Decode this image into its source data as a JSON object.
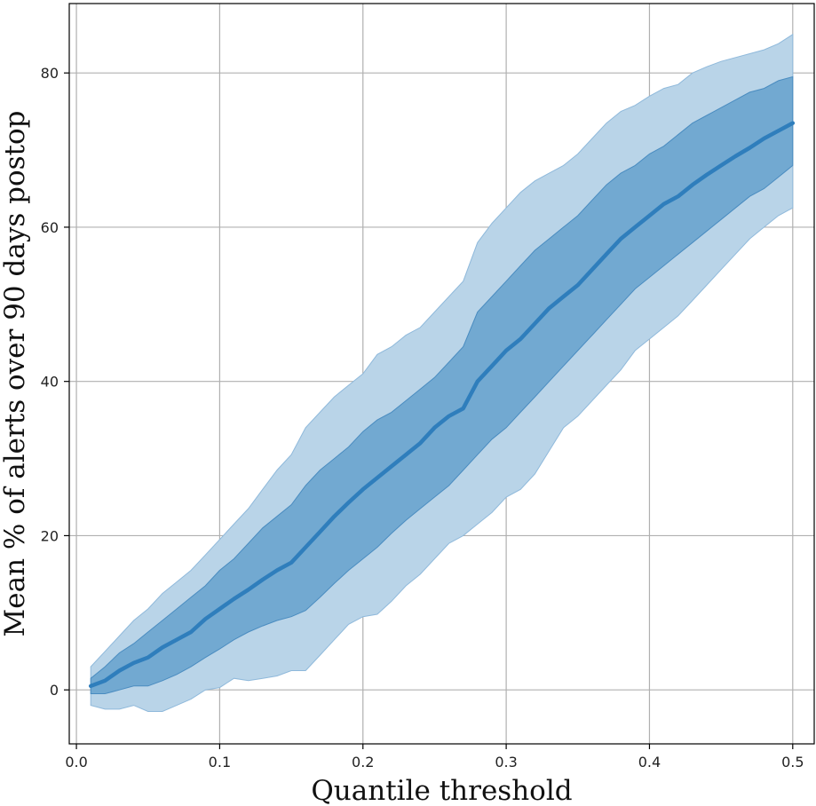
{
  "chart_data": {
    "type": "area",
    "title": "",
    "xlabel": "Quantile threshold",
    "ylabel": "Mean % of alerts over 90 days postop",
    "xlim": [
      -0.005,
      0.515
    ],
    "ylim": [
      -7,
      89
    ],
    "xticks": [
      0.0,
      0.1,
      0.2,
      0.3,
      0.4,
      0.5
    ],
    "xtick_labels": [
      "0.0",
      "0.1",
      "0.2",
      "0.3",
      "0.4",
      "0.5"
    ],
    "yticks": [
      0,
      20,
      40,
      60,
      80
    ],
    "ytick_labels": [
      "0",
      "20",
      "40",
      "60",
      "80"
    ],
    "grid": true,
    "legend": "none",
    "colors": {
      "line": "#2f7ebc",
      "inner_band": "#5b9bca",
      "outer_band": "#b9d4e8",
      "grid": "#b0b0b0"
    },
    "x": [
      0.01,
      0.02,
      0.03,
      0.04,
      0.05,
      0.06,
      0.07,
      0.08,
      0.09,
      0.1,
      0.11,
      0.12,
      0.13,
      0.14,
      0.15,
      0.16,
      0.17,
      0.18,
      0.19,
      0.2,
      0.21,
      0.22,
      0.23,
      0.24,
      0.25,
      0.26,
      0.27,
      0.28,
      0.29,
      0.3,
      0.31,
      0.32,
      0.33,
      0.34,
      0.35,
      0.36,
      0.37,
      0.38,
      0.39,
      0.4,
      0.41,
      0.42,
      0.43,
      0.44,
      0.45,
      0.46,
      0.47,
      0.48,
      0.49,
      0.5
    ],
    "series": [
      {
        "values": [
          0.5,
          1.2,
          2.5,
          3.5,
          4.2,
          5.5,
          6.5,
          7.5,
          9.2,
          10.5,
          11.8,
          13.0,
          14.3,
          15.5,
          16.5,
          18.5,
          20.5,
          22.5,
          24.3,
          26.0,
          27.5,
          29.0,
          30.5,
          32.0,
          34.0,
          35.5,
          36.5,
          40.0,
          42.0,
          44.0,
          45.5,
          47.5,
          49.5,
          51.0,
          52.5,
          54.5,
          56.5,
          58.5,
          60.0,
          61.5,
          63.0,
          64.0,
          65.5,
          66.8,
          68.0,
          69.2,
          70.3,
          71.5,
          72.5,
          73.5
        ],
        "inner_band": {
          "lower": [
            -0.5,
            -0.5,
            0.0,
            0.5,
            0.5,
            1.2,
            2.0,
            3.0,
            4.2,
            5.3,
            6.5,
            7.5,
            8.3,
            9.0,
            9.5,
            10.3,
            12.0,
            13.8,
            15.5,
            17.0,
            18.5,
            20.3,
            22.0,
            23.5,
            25.0,
            26.5,
            28.5,
            30.5,
            32.5,
            34.0,
            36.0,
            38.0,
            40.0,
            42.0,
            44.0,
            46.0,
            48.0,
            50.0,
            52.0,
            53.5,
            55.0,
            56.5,
            58.0,
            59.5,
            61.0,
            62.5,
            64.0,
            65.0,
            66.5,
            68.0
          ],
          "upper": [
            1.5,
            3.0,
            4.8,
            6.0,
            7.5,
            9.0,
            10.5,
            12.0,
            13.5,
            15.5,
            17.0,
            19.0,
            21.0,
            22.5,
            24.0,
            26.5,
            28.5,
            30.0,
            31.5,
            33.5,
            35.0,
            36.0,
            37.5,
            39.0,
            40.5,
            42.5,
            44.5,
            49.0,
            51.0,
            53.0,
            55.0,
            57.0,
            58.5,
            60.0,
            61.5,
            63.5,
            65.5,
            67.0,
            68.0,
            69.5,
            70.5,
            72.0,
            73.5,
            74.5,
            75.5,
            76.5,
            77.5,
            78.0,
            79.0,
            79.5
          ]
        },
        "outer_band": {
          "lower": [
            -2.0,
            -2.5,
            -2.5,
            -2.0,
            -2.8,
            -2.8,
            -2.0,
            -1.2,
            0.0,
            0.3,
            1.5,
            1.2,
            1.5,
            1.8,
            2.5,
            2.5,
            4.5,
            6.5,
            8.5,
            9.5,
            9.8,
            11.5,
            13.5,
            15.0,
            17.0,
            19.0,
            20.0,
            21.5,
            23.0,
            25.0,
            26.0,
            28.0,
            31.0,
            34.0,
            35.5,
            37.5,
            39.5,
            41.5,
            44.0,
            45.5,
            47.0,
            48.5,
            50.5,
            52.5,
            54.5,
            56.5,
            58.5,
            60.0,
            61.5,
            62.5
          ],
          "upper": [
            3.0,
            5.0,
            7.0,
            9.0,
            10.5,
            12.5,
            14.0,
            15.5,
            17.5,
            19.5,
            21.5,
            23.5,
            26.0,
            28.5,
            30.5,
            34.0,
            36.0,
            38.0,
            39.5,
            41.0,
            43.5,
            44.5,
            46.0,
            47.0,
            49.0,
            51.0,
            53.0,
            58.0,
            60.5,
            62.5,
            64.5,
            66.0,
            67.0,
            68.0,
            69.5,
            71.5,
            73.5,
            75.0,
            75.8,
            77.0,
            78.0,
            78.5,
            80.0,
            80.8,
            81.5,
            82.0,
            82.5,
            83.0,
            83.8,
            85.0
          ]
        }
      }
    ]
  }
}
